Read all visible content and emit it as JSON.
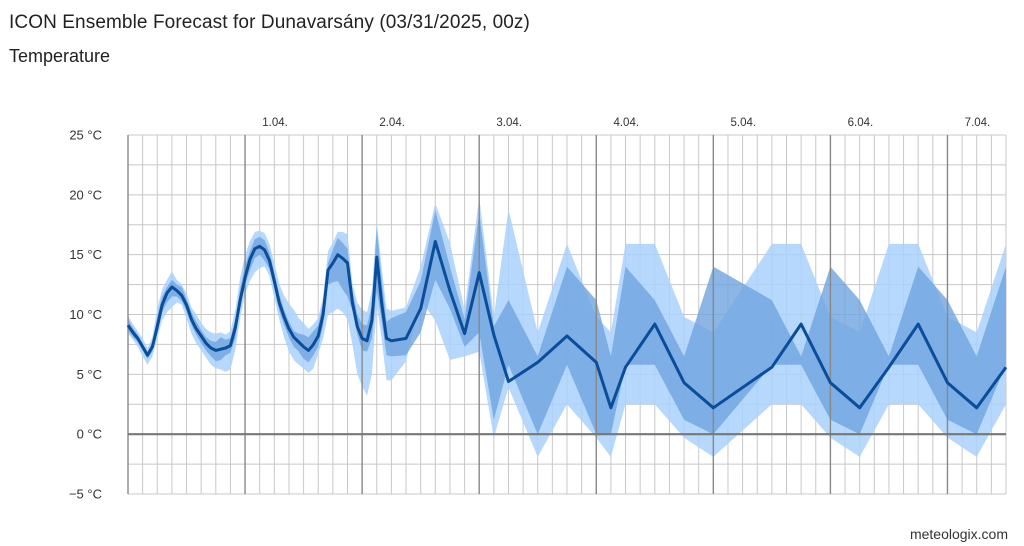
{
  "title": "ICON Ensemble Forecast for Dunavarsány (03/31/2025, 00z)",
  "subtitle": "Temperature",
  "credit": "meteologix.com",
  "colors": {
    "outer_band": "#a9d1fb",
    "inner_band": "#6fa4df",
    "median_line": "#0a4d9a",
    "grid": "#c8c8c8",
    "day_line": "#888888",
    "zero_line": "#777777"
  },
  "chart_data": {
    "type": "area",
    "title": "ICON Ensemble Forecast for Dunavarsány (03/31/2025, 00z)",
    "subtitle": "Temperature",
    "x_unit": "hours from 03/31/2025 00z",
    "ylim": [
      -5,
      25
    ],
    "y_ticks": [
      {
        "value": 25,
        "label": "25 °C"
      },
      {
        "value": 20,
        "label": "20 °C"
      },
      {
        "value": 15,
        "label": "15 °C"
      },
      {
        "value": 10,
        "label": "10 °C"
      },
      {
        "value": 5,
        "label": "5 °C"
      },
      {
        "value": 0,
        "label": "0 °C"
      },
      {
        "value": -5,
        "label": "−5 °C"
      }
    ],
    "day_ticks": [
      {
        "hour": 24,
        "label": "1.04."
      },
      {
        "hour": 48,
        "label": "2.04."
      },
      {
        "hour": 72,
        "label": "3.04."
      },
      {
        "hour": 96,
        "label": "4.04."
      },
      {
        "hour": 120,
        "label": "5.04."
      },
      {
        "hour": 144,
        "label": "6.04."
      },
      {
        "hour": 168,
        "label": "7.04."
      }
    ],
    "grid": true,
    "series": [
      {
        "hours": [
          0,
          1,
          2,
          3,
          4,
          5,
          6,
          7,
          8,
          9,
          10,
          11,
          12,
          13,
          14,
          15,
          16,
          17,
          18,
          19,
          20,
          21,
          22,
          23,
          24,
          25,
          26,
          27,
          28,
          29,
          30,
          31,
          32,
          33,
          34,
          35,
          36,
          37,
          38,
          39,
          40,
          41,
          42,
          43,
          44,
          45,
          46,
          47,
          48,
          49,
          50,
          51,
          52,
          53,
          54,
          57,
          60,
          63,
          66,
          69,
          72,
          75,
          78,
          84,
          90,
          96,
          99,
          102,
          108,
          114,
          120,
          132,
          138,
          144,
          150,
          156,
          162,
          168,
          174,
          180
        ],
        "median": [
          9.1,
          8.5,
          8.0,
          7.3,
          6.6,
          7.3,
          9.0,
          10.8,
          11.8,
          12.3,
          12.0,
          11.6,
          10.8,
          9.6,
          8.8,
          8.2,
          7.6,
          7.2,
          7.0,
          7.1,
          7.2,
          7.4,
          8.9,
          11.2,
          13.1,
          14.6,
          15.5,
          15.7,
          15.4,
          14.5,
          12.8,
          11.0,
          9.8,
          8.8,
          8.1,
          7.7,
          7.3,
          7.0,
          7.5,
          8.2,
          10.0,
          13.7,
          14.3,
          15.0,
          14.7,
          14.3,
          11.0,
          9.0,
          8.0,
          7.8,
          9.5,
          14.8,
          11.0,
          8.0,
          7.8,
          8.0,
          10.5,
          16.1,
          12.0,
          8.4,
          13.5,
          8.3,
          4.4,
          6.0,
          8.2,
          6.0,
          2.2,
          5.6,
          9.2,
          4.3,
          2.2,
          5.6,
          9.2,
          4.3,
          2.2,
          5.6,
          9.2,
          4.3,
          2.2,
          5.6
        ],
        "inner_upper": [
          9.6,
          8.9,
          8.3,
          7.6,
          6.9,
          7.7,
          9.8,
          11.5,
          12.3,
          12.9,
          12.5,
          12.3,
          11.3,
          10.2,
          9.4,
          8.7,
          8.1,
          7.8,
          7.7,
          8.1,
          7.9,
          8.0,
          9.6,
          12.2,
          14.1,
          15.3,
          16.3,
          16.5,
          16.2,
          15.2,
          13.5,
          11.7,
          10.4,
          9.4,
          8.6,
          8.4,
          8.3,
          8.1,
          8.6,
          9.1,
          11.0,
          14.3,
          15.4,
          16.4,
          16.0,
          15.5,
          12.0,
          10.0,
          9.2,
          9.1,
          10.8,
          17.3,
          13.0,
          9.4,
          9.7,
          10.2,
          12.8,
          18.7,
          14.0,
          9.6,
          18.5,
          9.0,
          11.2,
          6.5,
          14.0,
          11.2,
          6.5,
          14.0,
          11.2,
          6.5,
          14.0,
          11.2,
          6.5,
          14.0,
          11.2,
          6.5,
          14.0,
          11.2,
          6.5,
          14.0
        ],
        "inner_lower": [
          8.7,
          8.1,
          7.7,
          7.0,
          6.3,
          6.9,
          8.4,
          10.2,
          11.0,
          11.5,
          11.5,
          11.1,
          10.3,
          9.1,
          8.3,
          7.6,
          7.0,
          6.5,
          6.1,
          6.2,
          6.6,
          6.8,
          8.0,
          10.6,
          12.5,
          13.7,
          14.7,
          15.0,
          14.5,
          13.8,
          12.2,
          10.3,
          9.1,
          8.1,
          7.3,
          6.9,
          6.3,
          6.0,
          6.6,
          7.3,
          9.1,
          12.5,
          12.7,
          12.8,
          12.1,
          11.5,
          10.3,
          8.3,
          7.0,
          6.9,
          8.0,
          12.0,
          9.5,
          6.6,
          6.5,
          6.6,
          8.5,
          12.9,
          10.5,
          7.3,
          8.5,
          1.2,
          5.8,
          0.0,
          5.8,
          0.0,
          0.0,
          5.8,
          5.8,
          1.2,
          0.0,
          5.8,
          5.8,
          1.2,
          0.0,
          5.8,
          5.8,
          1.2,
          0.0,
          5.8
        ],
        "outer_upper": [
          9.9,
          9.2,
          8.6,
          8.0,
          7.2,
          8.1,
          10.5,
          12.1,
          12.9,
          13.6,
          12.9,
          12.5,
          11.8,
          10.6,
          10.0,
          9.3,
          8.8,
          8.5,
          8.4,
          8.5,
          8.3,
          8.6,
          10.4,
          13.1,
          15.0,
          16.1,
          16.9,
          17.0,
          16.8,
          15.9,
          14.3,
          12.6,
          11.6,
          10.9,
          10.4,
          9.7,
          9.3,
          8.8,
          9.2,
          9.7,
          11.5,
          15.3,
          16.0,
          16.9,
          16.9,
          16.7,
          12.6,
          11.0,
          10.4,
          10.2,
          12.0,
          17.7,
          14.0,
          10.5,
          10.3,
          10.6,
          14.0,
          19.3,
          16.0,
          10.4,
          19.8,
          9.8,
          18.8,
          8.5,
          15.9,
          9.8,
          8.5,
          15.9,
          15.9,
          9.8,
          8.5,
          15.9,
          15.9,
          9.8,
          8.5,
          15.9,
          15.9,
          9.8,
          8.5,
          15.9
        ],
        "outer_lower": [
          8.4,
          7.9,
          7.3,
          6.5,
          5.8,
          6.5,
          8.0,
          9.5,
          10.2,
          10.6,
          11.0,
          10.8,
          9.7,
          8.4,
          7.6,
          7.0,
          6.4,
          5.8,
          5.5,
          5.4,
          5.2,
          5.4,
          7.0,
          9.7,
          11.7,
          12.8,
          13.5,
          13.9,
          14.0,
          13.2,
          11.4,
          9.6,
          8.1,
          6.9,
          6.2,
          5.8,
          5.5,
          5.1,
          5.5,
          6.7,
          8.0,
          10.0,
          10.2,
          10.5,
          10.2,
          9.6,
          7.5,
          5.0,
          4.0,
          3.2,
          5.0,
          10.8,
          8.0,
          4.5,
          4.5,
          6.1,
          11.2,
          9.5,
          6.2,
          6.5,
          6.9,
          -0.3,
          3.9,
          -1.9,
          2.5,
          -0.3,
          -1.9,
          2.5,
          2.5,
          -0.3,
          -1.9,
          2.5,
          2.5,
          -0.3,
          -1.9,
          2.5,
          2.5,
          -0.3,
          -1.9,
          2.5
        ]
      }
    ]
  }
}
